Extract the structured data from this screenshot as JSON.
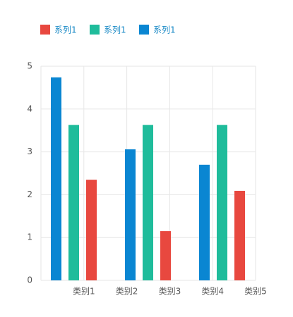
{
  "chart_data": {
    "type": "bar",
    "categories": [
      "类别1",
      "类别2",
      "类别3",
      "类别4",
      "类别5"
    ],
    "series": [
      {
        "name": "系列1",
        "color": "#e8483f",
        "values": [
          2.35,
          1.15,
          2.09,
          null,
          null
        ]
      },
      {
        "name": "系列1",
        "color": "#1fbc9b",
        "values": [
          3.63,
          3.63,
          3.63,
          null,
          null
        ]
      },
      {
        "name": "系列1",
        "color": "#0a86d2",
        "values": [
          4.74,
          3.06,
          2.7,
          null,
          null
        ]
      }
    ],
    "ylim": [
      0,
      5
    ],
    "yticks": [
      0,
      1,
      2,
      3,
      4,
      5
    ],
    "grid": true,
    "legend": "top-left"
  }
}
